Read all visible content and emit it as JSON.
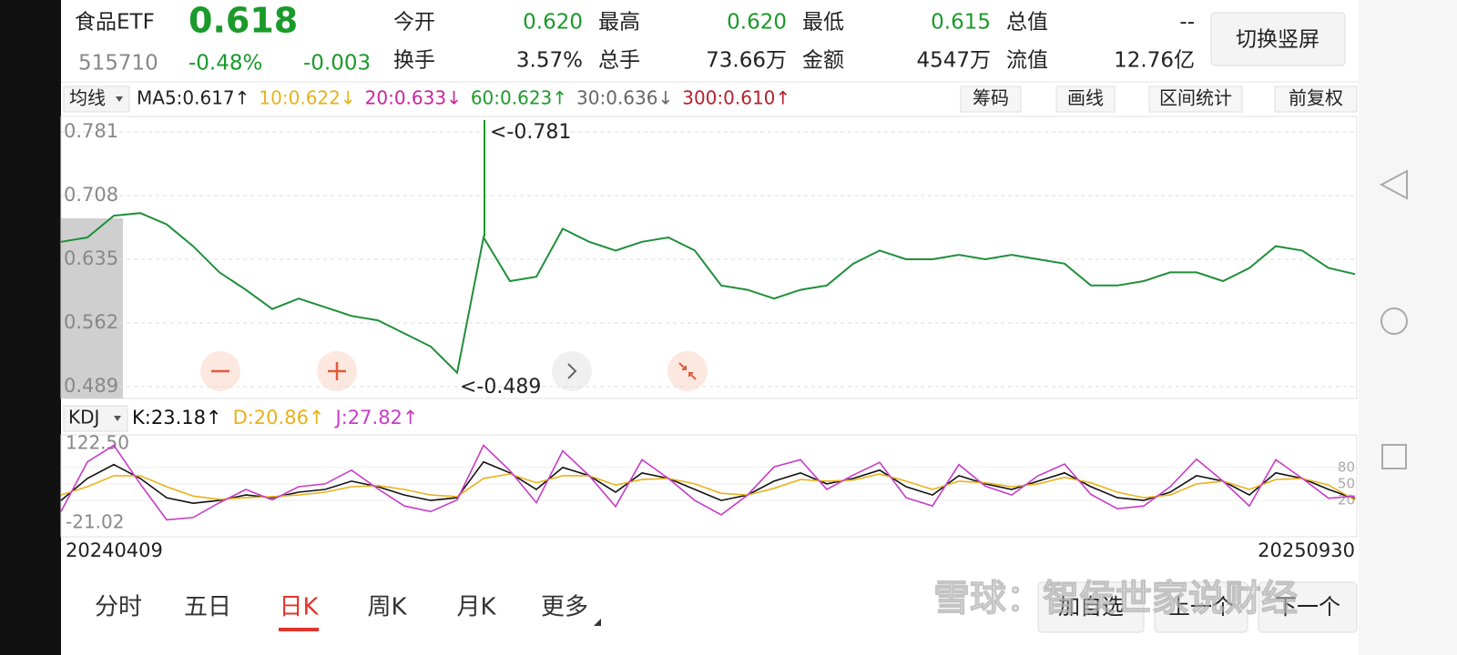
{
  "header": {
    "name": "食品ETF",
    "price": "0.618",
    "code": "515710",
    "change_pct": "-0.48%",
    "change": "-0.003",
    "stats": [
      [
        "今开",
        "0.620"
      ],
      [
        "最高",
        "0.620"
      ],
      [
        "最低",
        "0.615"
      ],
      [
        "总值",
        "--"
      ],
      [
        "换手",
        "3.57%"
      ],
      [
        "总手",
        "73.66万"
      ],
      [
        "金额",
        "4547万"
      ],
      [
        "流值",
        "12.76亿"
      ]
    ],
    "button": "切换竖屏"
  },
  "ma_bar": {
    "label": "均线",
    "items": [
      {
        "text": "MA5:0.617↑",
        "color": "#222222"
      },
      {
        "text": "10:0.622↓",
        "color": "#e8b21c"
      },
      {
        "text": "20:0.633↓",
        "color": "#c8259e"
      },
      {
        "text": "60:0.623↑",
        "color": "#1f9a2c"
      },
      {
        "text": "30:0.636↓",
        "color": "#666666"
      },
      {
        "text": "300:0.610↑",
        "color": "#b8202c"
      }
    ],
    "tools": [
      "筹码",
      "画线",
      "区间统计",
      "前复权"
    ]
  },
  "chart_data": [
    {
      "type": "line",
      "color": "#1f8f3a",
      "values": [
        0.655,
        0.66,
        0.685,
        0.688,
        0.675,
        0.65,
        0.62,
        0.6,
        0.578,
        0.59,
        0.58,
        0.57,
        0.565,
        0.55,
        0.535,
        0.505,
        0.66,
        0.61,
        0.615,
        0.67,
        0.655,
        0.645,
        0.655,
        0.66,
        0.645,
        0.605,
        0.6,
        0.59,
        0.6,
        0.605,
        0.63,
        0.645,
        0.635,
        0.635,
        0.64,
        0.635,
        0.64,
        0.635,
        0.63,
        0.605,
        0.605,
        0.61,
        0.62,
        0.62,
        0.61,
        0.625,
        0.65,
        0.645,
        0.625,
        0.618
      ],
      "ylim": [
        0.489,
        0.781
      ],
      "yticks": [
        0.489,
        0.562,
        0.635,
        0.708,
        0.781
      ],
      "grid": true,
      "annotations": [
        "<-0.781",
        "<-0.489"
      ]
    },
    {
      "type": "kdj",
      "indicator": "KDJ",
      "categories": [
        "20240409",
        null,
        null,
        null,
        null,
        null,
        null,
        null,
        null,
        null,
        null,
        null,
        null,
        null,
        null,
        null,
        null,
        null,
        null,
        null,
        null,
        null,
        null,
        null,
        null,
        null,
        null,
        null,
        null,
        null,
        null,
        null,
        null,
        null,
        null,
        null,
        null,
        null,
        null,
        null,
        null,
        null,
        null,
        null,
        null,
        null,
        null,
        null,
        null,
        "20250930"
      ],
      "series": [
        {
          "name": "K:23.18↑",
          "color": "#111111",
          "values": [
            20,
            60,
            85,
            60,
            25,
            15,
            20,
            30,
            25,
            35,
            40,
            55,
            45,
            30,
            20,
            25,
            90,
            70,
            40,
            80,
            65,
            35,
            70,
            60,
            40,
            20,
            30,
            55,
            70,
            50,
            60,
            75,
            45,
            30,
            65,
            50,
            40,
            55,
            70,
            45,
            25,
            20,
            35,
            65,
            55,
            30,
            70,
            60,
            40,
            23.18
          ]
        },
        {
          "name": "D:20.86↑",
          "color": "#e8b21c",
          "values": [
            30,
            45,
            65,
            65,
            45,
            28,
            22,
            25,
            27,
            30,
            35,
            45,
            47,
            40,
            30,
            27,
            60,
            68,
            52,
            65,
            65,
            48,
            58,
            60,
            50,
            33,
            30,
            42,
            58,
            55,
            57,
            68,
            55,
            40,
            55,
            52,
            45,
            50,
            62,
            52,
            35,
            25,
            30,
            50,
            55,
            40,
            58,
            60,
            48,
            20.86
          ]
        },
        {
          "name": "J:27.82↑",
          "color": "#c83cc8",
          "values": [
            0,
            90,
            120,
            50,
            -15,
            -11,
            16,
            40,
            21,
            45,
            50,
            75,
            41,
            10,
            0,
            21,
            120,
            74,
            16,
            110,
            65,
            9,
            94,
            60,
            20,
            -6,
            30,
            81,
            94,
            40,
            66,
            89,
            25,
            10,
            85,
            46,
            30,
            65,
            86,
            31,
            5,
            10,
            45,
            95,
            55,
            10,
            94,
            60,
            24,
            27.82
          ]
        }
      ],
      "ylim": [
        -21.02,
        122.5
      ],
      "yticks": [
        -21.02,
        {
          "value": 122.5,
          "label": "122.50"
        }
      ],
      "guide_ticks": [
        20,
        50,
        80
      ]
    }
  ],
  "tabs": {
    "items": [
      "分时",
      "五日",
      "日K",
      "周K",
      "月K",
      "更多"
    ],
    "active": 2
  },
  "actions": [
    "加自选",
    "上一个",
    "下一个"
  ],
  "watermark": "雪球：智侯世家说财经"
}
